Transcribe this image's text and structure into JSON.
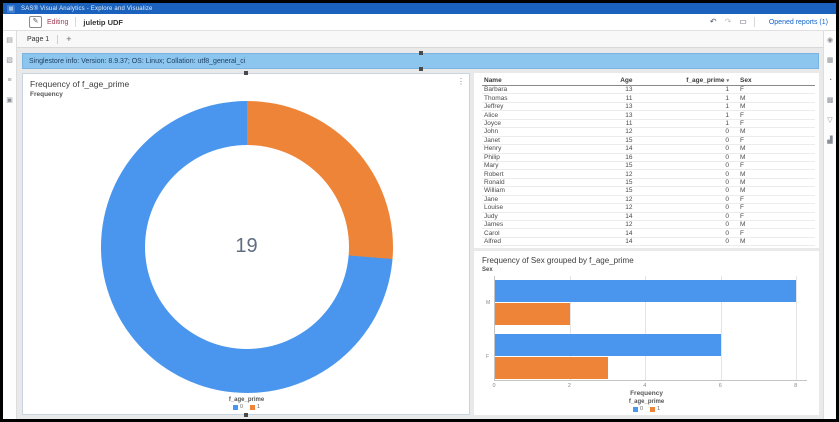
{
  "app": {
    "title": "SAS® Visual Analytics - Explore and Visualize"
  },
  "toolbar": {
    "mode_label": "Editing",
    "report_title": "juletip UDF",
    "opened_reports_label": "Opened reports (1)"
  },
  "tabs": {
    "active_label": "Page 1",
    "add_label": "+"
  },
  "banner": {
    "text": "Singlestore info: Version: 8.9.37; OS: Linux; Collation: utf8_general_ci"
  },
  "icons": {
    "app_launcher": "▦",
    "edit_pencil": "✎",
    "undo": "↶",
    "redo": "↷",
    "display": "▭",
    "object_menu": "⋮"
  },
  "left_rail": [
    {
      "name": "data-pane-icon",
      "glyph": "▤"
    },
    {
      "name": "objects-pane-icon",
      "glyph": "▧"
    },
    {
      "name": "outline-pane-icon",
      "glyph": "≡"
    },
    {
      "name": "snapshots-pane-icon",
      "glyph": "▣"
    }
  ],
  "right_rail": [
    {
      "name": "report-options-icon",
      "glyph": "◉"
    },
    {
      "name": "data-panel-icon",
      "glyph": "▦"
    },
    {
      "name": "roles-panel-icon",
      "glyph": "◔"
    },
    {
      "name": "actions-panel-icon",
      "glyph": "▩"
    },
    {
      "name": "filters-panel-icon",
      "glyph": "▽"
    },
    {
      "name": "ranks-panel-icon",
      "glyph": "▟"
    }
  ],
  "table": {
    "columns": [
      "Name",
      "Age",
      "f_age_prime",
      "Sex"
    ],
    "sort_column": 2,
    "sort_glyph": "▾",
    "rows": [
      [
        "Barbara",
        13,
        1,
        "F"
      ],
      [
        "Thomas",
        11,
        1,
        "M"
      ],
      [
        "Jeffrey",
        13,
        1,
        "M"
      ],
      [
        "Alice",
        13,
        1,
        "F"
      ],
      [
        "Joyce",
        11,
        1,
        "F"
      ],
      [
        "John",
        12,
        0,
        "M"
      ],
      [
        "Janet",
        15,
        0,
        "F"
      ],
      [
        "Henry",
        14,
        0,
        "M"
      ],
      [
        "Philip",
        16,
        0,
        "M"
      ],
      [
        "Mary",
        15,
        0,
        "F"
      ],
      [
        "Robert",
        12,
        0,
        "M"
      ],
      [
        "Ronald",
        15,
        0,
        "M"
      ],
      [
        "William",
        15,
        0,
        "M"
      ],
      [
        "Jane",
        12,
        0,
        "F"
      ],
      [
        "Louise",
        12,
        0,
        "F"
      ],
      [
        "Judy",
        14,
        0,
        "F"
      ],
      [
        "James",
        12,
        0,
        "M"
      ],
      [
        "Carol",
        14,
        0,
        "F"
      ],
      [
        "Alfred",
        14,
        0,
        "M"
      ]
    ]
  },
  "chart_data": [
    {
      "type": "pie",
      "subtype": "donut",
      "title": "Frequency of f_age_prime",
      "measure_label": "Frequency",
      "categories": [
        "0",
        "1"
      ],
      "values": [
        14,
        5
      ],
      "colors": [
        "#4a96ee",
        "#ee8438"
      ],
      "center_total": "19",
      "legend_title": "f_age_prime",
      "legend_position": "bottom"
    },
    {
      "type": "bar",
      "orientation": "horizontal",
      "title": "Frequency of Sex grouped by f_age_prime",
      "ylabel": "Sex",
      "xlabel": "Frequency",
      "categories": [
        "M",
        "F"
      ],
      "series": [
        {
          "name": "0",
          "values": [
            8,
            6
          ]
        },
        {
          "name": "1",
          "values": [
            2,
            3
          ]
        }
      ],
      "colors": [
        "#4a96ee",
        "#ee8438"
      ],
      "xlim": [
        0,
        8.3
      ],
      "xticks": [
        0,
        2,
        4,
        6,
        8
      ],
      "grid": true,
      "legend_title": "f_age_prime",
      "legend_position": "bottom"
    }
  ],
  "colors": {
    "appbar": "#1a62bd",
    "banner_bg": "#8cc6ef",
    "series_0": "#4a96ee",
    "series_1": "#ee8438",
    "link": "#0f62c8",
    "editing_text": "#9e3a52"
  }
}
